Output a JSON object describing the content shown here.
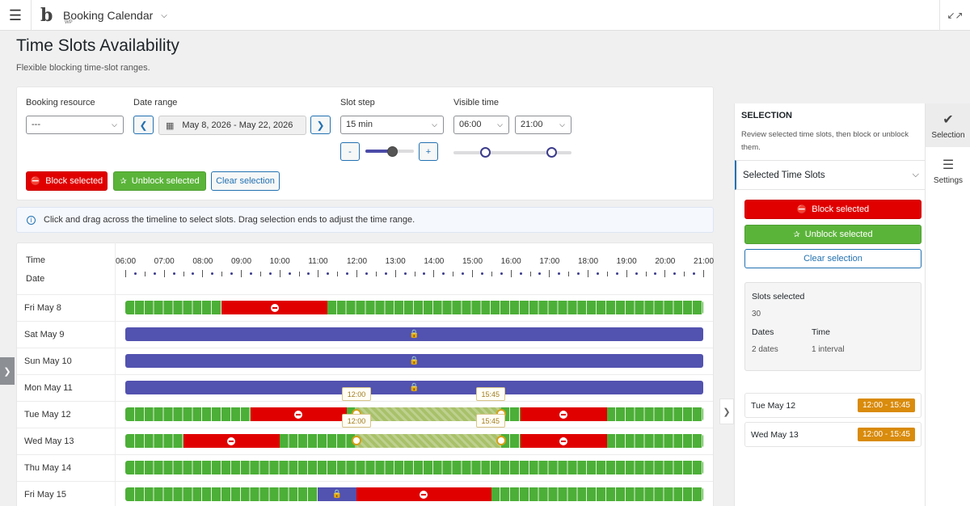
{
  "topbar": {
    "brand_name": "Booking Calendar",
    "brand_sub": "WP",
    "logo_glyph": "b"
  },
  "page": {
    "title": "Time Slots Availability",
    "subtitle": "Flexible blocking time-slot ranges."
  },
  "filters": {
    "resource_label": "Booking resource",
    "resource_value": "---",
    "date_range_label": "Date range",
    "date_range_value": "May 8, 2026 - May 22, 2026",
    "slot_step_label": "Slot step",
    "slot_step_value": "15 min",
    "slot_step_minus": "-",
    "slot_step_plus": "+",
    "slot_step_slider": 0.55,
    "visible_time_label": "Visible time",
    "visible_from": "06:00",
    "visible_to": "21:00",
    "visible_range": [
      0.27,
      0.83
    ]
  },
  "actions": {
    "block": "Block selected",
    "unblock": "Unblock selected",
    "clear": "Clear selection"
  },
  "info_text": "Click and drag across the timeline to select slots. Drag selection ends to adjust the time range.",
  "timeline": {
    "time_header": "Time",
    "date_header": "Date",
    "hours": [
      "06:00",
      "07:00",
      "08:00",
      "09:00",
      "10:00",
      "11:00",
      "12:00",
      "13:00",
      "14:00",
      "15:00",
      "16:00",
      "17:00",
      "18:00",
      "19:00",
      "20:00",
      "21:00"
    ],
    "rows": [
      {
        "date": "Fri May 8",
        "blocked_day": false,
        "blocks": [
          {
            "kind": "unavailable",
            "from": "08:30",
            "to": "11:15"
          }
        ]
      },
      {
        "date": "Sat May 9",
        "blocked_day": true,
        "blocks": []
      },
      {
        "date": "Sun May 10",
        "blocked_day": true,
        "blocks": []
      },
      {
        "date": "Mon May 11",
        "blocked_day": true,
        "blocks": []
      },
      {
        "date": "Tue May 12",
        "blocked_day": false,
        "blocks": [
          {
            "kind": "unavailable",
            "from": "09:15",
            "to": "11:45"
          },
          {
            "kind": "selected",
            "from": "12:00",
            "to": "15:45"
          },
          {
            "kind": "unavailable",
            "from": "16:15",
            "to": "18:30"
          }
        ]
      },
      {
        "date": "Wed May 13",
        "blocked_day": false,
        "blocks": [
          {
            "kind": "unavailable",
            "from": "07:30",
            "to": "10:00"
          },
          {
            "kind": "selected",
            "from": "12:00",
            "to": "15:45"
          },
          {
            "kind": "unavailable",
            "from": "16:15",
            "to": "18:30"
          }
        ]
      },
      {
        "date": "Thu May 14",
        "blocked_day": false,
        "blocks": []
      },
      {
        "date": "Fri May 15",
        "blocked_day": false,
        "blocks": [
          {
            "kind": "locked",
            "from": "11:00",
            "to": "12:00"
          },
          {
            "kind": "unavailable",
            "from": "12:00",
            "to": "15:30"
          }
        ]
      }
    ],
    "sel_start_label": "12:00",
    "sel_end_label": "15:45"
  },
  "sidebar": {
    "heading": "SELECTION",
    "description": "Review selected time slots, then block or unblock them.",
    "accordion_title": "Selected Time Slots",
    "slots_selected_label": "Slots selected",
    "slots_selected_value": "30",
    "dates_label": "Dates",
    "dates_value": "2 dates",
    "time_label": "Time",
    "time_value": "1 interval",
    "selected_days": [
      {
        "date": "Tue May 12",
        "range": "12:00 - 15:45"
      },
      {
        "date": "Wed May 13",
        "range": "12:00 - 15:45"
      }
    ]
  },
  "rail": {
    "selection_label": "Selection",
    "settings_label": "Settings"
  },
  "colors": {
    "available": "#4caf37",
    "unavailable": "#e00000",
    "blocked_day": "#5252b0",
    "selected": "#a8c16a",
    "badge": "#d98b0b",
    "accent": "#2271b1"
  }
}
